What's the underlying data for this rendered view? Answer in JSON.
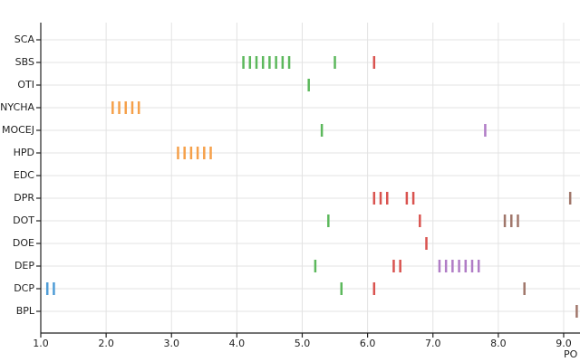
{
  "chart_data": {
    "type": "strip",
    "x_label": "PO",
    "categories": [
      "SCA",
      "SBS",
      "OTI",
      "NYCHA",
      "MOCEJ",
      "HPD",
      "EDC",
      "DPR",
      "DOT",
      "DOE",
      "DEP",
      "DCP",
      "BPL"
    ],
    "xlim": [
      1.0,
      9.25
    ],
    "xticks": [
      {
        "value": 1,
        "label": "1.0"
      },
      {
        "value": 2,
        "label": "2.0"
      },
      {
        "value": 3,
        "label": "3.0"
      },
      {
        "value": 4,
        "label": "4.0"
      },
      {
        "value": 5,
        "label": "5.0"
      },
      {
        "value": 6,
        "label": "6.0"
      },
      {
        "value": 7,
        "label": "7.0"
      },
      {
        "value": 8,
        "label": "8.0"
      },
      {
        "value": 9,
        "label": "9.0"
      }
    ],
    "grid": true,
    "series": [
      {
        "color": "#4e9cd6",
        "y": [
          "DCP",
          "DCP"
        ],
        "x": [
          1.1,
          1.2
        ]
      },
      {
        "color": "#f5a04a",
        "y": [
          "NYCHA",
          "NYCHA",
          "NYCHA",
          "NYCHA",
          "NYCHA",
          "HPD",
          "HPD",
          "HPD",
          "HPD",
          "HPD",
          "HPD"
        ],
        "x": [
          2.1,
          2.2,
          2.3,
          2.4,
          2.5,
          3.1,
          3.2,
          3.3,
          3.4,
          3.5,
          3.6
        ]
      },
      {
        "color": "#5cb85c",
        "y": [
          "SBS",
          "SBS",
          "SBS",
          "SBS",
          "SBS",
          "SBS",
          "SBS",
          "SBS",
          "SBS",
          "OTI",
          "MOCEJ",
          "DOT",
          "DEP",
          "DCP"
        ],
        "x": [
          4.1,
          4.2,
          4.3,
          4.4,
          4.5,
          4.6,
          4.7,
          4.8,
          5.5,
          5.1,
          5.3,
          5.4,
          5.2,
          5.6
        ]
      },
      {
        "color": "#d9534f",
        "y": [
          "SBS",
          "DPR",
          "DPR",
          "DPR",
          "DPR",
          "DPR",
          "DOT",
          "DOE",
          "DEP",
          "DEP",
          "DCP"
        ],
        "x": [
          6.1,
          6.1,
          6.2,
          6.3,
          6.6,
          6.7,
          6.8,
          6.9,
          6.4,
          6.5,
          6.1
        ]
      },
      {
        "color": "#b07cc6",
        "y": [
          "MOCEJ",
          "DEP",
          "DEP",
          "DEP",
          "DEP",
          "DEP",
          "DEP",
          "DEP"
        ],
        "x": [
          7.8,
          7.1,
          7.2,
          7.3,
          7.4,
          7.5,
          7.6,
          7.7
        ]
      },
      {
        "color": "#a0766a",
        "y": [
          "DPR",
          "DOT",
          "DOT",
          "DOT",
          "DCP",
          "BPL"
        ],
        "x": [
          9.1,
          8.1,
          8.2,
          8.3,
          8.4,
          9.2
        ]
      }
    ]
  }
}
